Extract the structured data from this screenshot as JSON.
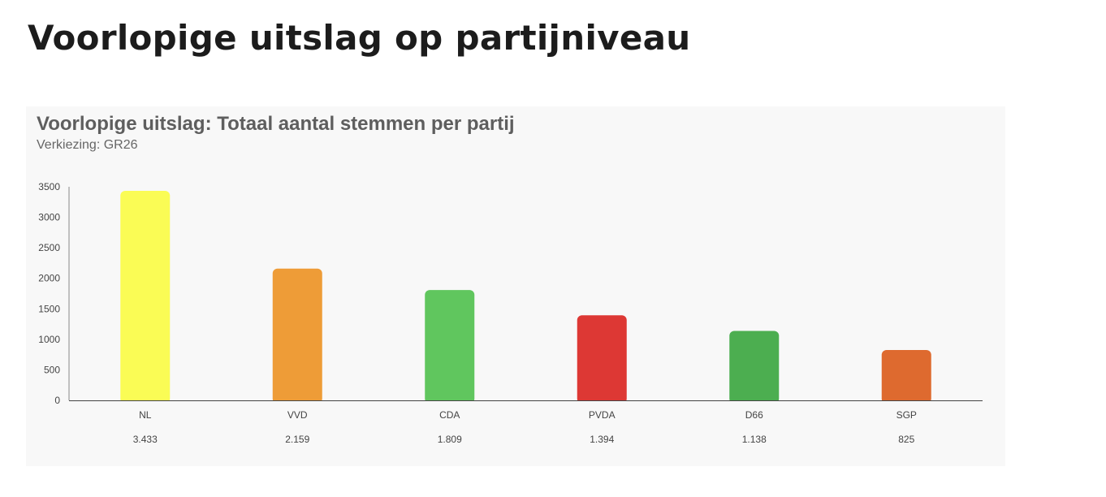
{
  "page": {
    "heading": "Voorlopige uitslag op partijniveau"
  },
  "chart_data": {
    "type": "bar",
    "title": "Voorlopige uitslag: Totaal aantal stemmen per partij",
    "subtitle": "Verkiezing: GR26",
    "categories": [
      "NL",
      "VVD",
      "CDA",
      "PVDA",
      "D66",
      "SGP"
    ],
    "values": [
      3433,
      2159,
      1809,
      1394,
      1138,
      825
    ],
    "value_labels": [
      "3.433",
      "2.159",
      "1.809",
      "1.394",
      "1.138",
      "825"
    ],
    "colors": [
      "#fafc55",
      "#ee9c37",
      "#60c65e",
      "#dd3834",
      "#4cae50",
      "#de6a2f"
    ],
    "ylim": [
      0,
      3500
    ],
    "yticks": [
      0,
      500,
      1000,
      1500,
      2000,
      2500,
      3000,
      3500
    ],
    "xlabel": "",
    "ylabel": "",
    "grid": false,
    "legend": "none"
  }
}
